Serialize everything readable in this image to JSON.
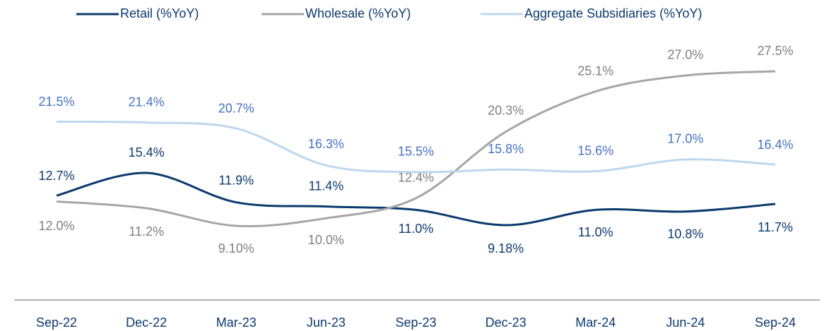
{
  "chart_data": {
    "type": "line",
    "categories": [
      "Sep-22",
      "Dec-22",
      "Mar-23",
      "Jun-23",
      "Sep-23",
      "Dec-23",
      "Mar-24",
      "Jun-24",
      "Sep-24"
    ],
    "series": [
      {
        "name": "Retail (%YoY)",
        "color": "#0b3a6e",
        "label_color": "#0b3a6e",
        "values": [
          12.7,
          15.4,
          11.9,
          11.4,
          11.0,
          9.18,
          11.0,
          10.8,
          11.7
        ],
        "value_labels": [
          "12.7%",
          "15.4%",
          "11.9%",
          "11.4%",
          "11.0%",
          "9.18%",
          "11.0%",
          "10.8%",
          "11.7%"
        ]
      },
      {
        "name": "Wholesale (%YoY)",
        "color": "#a6a6a6",
        "label_color": "#7f7f7f",
        "values": [
          12.0,
          11.2,
          9.1,
          10.0,
          12.4,
          20.3,
          25.1,
          27.0,
          27.5
        ],
        "value_labels": [
          "12.0%",
          "11.2%",
          "9.10%",
          "10.0%",
          "12.4%",
          "20.3%",
          "25.1%",
          "27.0%",
          "27.5%"
        ]
      },
      {
        "name": "Aggregate Subsidiaries (%YoY)",
        "color": "#bdd7ee",
        "label_color": "#4472c4",
        "values": [
          21.5,
          21.4,
          20.7,
          16.3,
          15.5,
          15.8,
          15.6,
          17.0,
          16.4
        ],
        "value_labels": [
          "21.5%",
          "21.4%",
          "20.7%",
          "16.3%",
          "15.5%",
          "15.8%",
          "15.6%",
          "17.0%",
          "16.4%"
        ]
      }
    ]
  }
}
